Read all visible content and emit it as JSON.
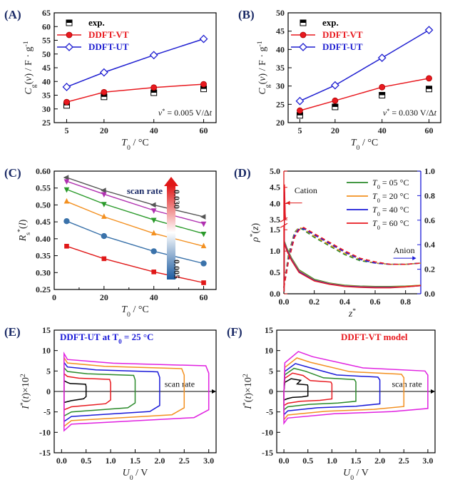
{
  "chart_data": [
    {
      "panel": "(A)",
      "type": "line",
      "xlabel": "T0 / °C",
      "ylabel": "Cg(v) / F·g-1",
      "xlim": [
        0,
        65
      ],
      "ylim": [
        25,
        65
      ],
      "xticks": [
        5,
        20,
        40,
        60
      ],
      "yticks": [
        25,
        30,
        35,
        40,
        45,
        50,
        55,
        60,
        65
      ],
      "x": [
        5,
        20,
        40,
        60
      ],
      "series": [
        {
          "name": "exp.",
          "marker": "square-half",
          "color": "#000000",
          "values": [
            31.3,
            34.4,
            35.9,
            37.3
          ]
        },
        {
          "name": "DDFT-VT",
          "marker": "circle",
          "color": "#e8191f",
          "values": [
            32.5,
            36.1,
            37.8,
            39.0
          ]
        },
        {
          "name": "DDFT-UT",
          "marker": "diamond-open",
          "color": "#1f1fd1",
          "values": [
            38.0,
            43.3,
            49.6,
            55.5
          ]
        }
      ],
      "annotation": "v* = 0.005 V/Δt"
    },
    {
      "panel": "(B)",
      "type": "line",
      "xlabel": "T0 / °C",
      "ylabel": "Cg(v) / F·g-1",
      "xlim": [
        0,
        65
      ],
      "ylim": [
        20,
        50
      ],
      "xticks": [
        5,
        20,
        40,
        60
      ],
      "yticks": [
        20,
        25,
        30,
        35,
        40,
        45,
        50
      ],
      "x": [
        5,
        20,
        40,
        60
      ],
      "series": [
        {
          "name": "exp.",
          "marker": "square-half",
          "color": "#000000",
          "values": [
            22.0,
            24.3,
            27.5,
            29.2
          ]
        },
        {
          "name": "DDFT-VT",
          "marker": "circle",
          "color": "#e8191f",
          "values": [
            23.3,
            26.0,
            29.7,
            32.1
          ]
        },
        {
          "name": "DDFT-UT",
          "marker": "diamond-open",
          "color": "#1f1fd1",
          "values": [
            25.9,
            30.2,
            37.7,
            45.3
          ]
        }
      ],
      "annotation": "v* = 0.030 V/Δt"
    },
    {
      "panel": "(C)",
      "type": "line",
      "xlabel": "T0 / °C",
      "ylabel": "Rs*(l)",
      "xlim": [
        0,
        65
      ],
      "ylim": [
        0.25,
        0.6
      ],
      "xticks": [
        0,
        10,
        20,
        30,
        40,
        50,
        60
      ],
      "yticks": [
        0.25,
        0.3,
        0.35,
        0.4,
        0.45,
        0.5,
        0.55,
        0.6
      ],
      "x": [
        5,
        20,
        40,
        60
      ],
      "series": [
        {
          "color": "#555555",
          "values": [
            0.581,
            0.543,
            0.5,
            0.465
          ],
          "marker": "triangle-left"
        },
        {
          "color": "#b030b0",
          "values": [
            0.57,
            0.532,
            0.484,
            0.445
          ],
          "marker": "triangle-down"
        },
        {
          "color": "#2a9a2a",
          "values": [
            0.546,
            0.503,
            0.456,
            0.415
          ],
          "marker": "triangle-down"
        },
        {
          "color": "#f39020",
          "values": [
            0.51,
            0.465,
            0.416,
            0.378
          ],
          "marker": "triangle-up"
        },
        {
          "color": "#3a72aa",
          "values": [
            0.452,
            0.408,
            0.363,
            0.327
          ],
          "marker": "circle"
        },
        {
          "color": "#e01818",
          "values": [
            0.378,
            0.341,
            0.302,
            0.27
          ],
          "marker": "square"
        }
      ],
      "legend_title": "scan rate",
      "colorbar_max": "0.030",
      "colorbar_min": "0.005"
    },
    {
      "panel": "(D)",
      "type": "line",
      "xlabel": "z*",
      "ylabel": "ρ*(z)",
      "xlim": [
        0,
        0.9
      ],
      "ylim_left": [
        0,
        5.0
      ],
      "ylim_right": [
        0,
        1.0
      ],
      "xticks": [
        0.0,
        0.2,
        0.4,
        0.6,
        0.8
      ],
      "yticks_left": [
        "0.0",
        "0.5",
        "1.0",
        "1.5",
        "3.5",
        "4.0",
        "4.5",
        "5.0"
      ],
      "yticks_right": [
        "0.0",
        "0.2",
        "0.4",
        "0.6",
        "0.8",
        "1.0"
      ],
      "series": [
        {
          "name": "T0 = 05 °C",
          "color": "#2a8a2a"
        },
        {
          "name": "T0 = 20 °C",
          "color": "#f39020"
        },
        {
          "name": "T0 = 40 °C",
          "color": "#1a1ad8"
        },
        {
          "name": "T0 = 60 °C",
          "color": "#e8191f"
        }
      ],
      "cation_label": "Cation",
      "anion_label": "Anion",
      "cation_curve_x": [
        0.005,
        0.02,
        0.05,
        0.1,
        0.2,
        0.3,
        0.4,
        0.5,
        0.6,
        0.7,
        0.8,
        0.9
      ],
      "cation_curve_y": [
        [
          1.22,
          1.07,
          0.84,
          0.56,
          0.34,
          0.25,
          0.2,
          0.18,
          0.17,
          0.17,
          0.18,
          0.2
        ],
        [
          1.2,
          1.05,
          0.82,
          0.54,
          0.32,
          0.24,
          0.19,
          0.17,
          0.16,
          0.16,
          0.17,
          0.2
        ],
        [
          1.18,
          1.03,
          0.8,
          0.52,
          0.31,
          0.23,
          0.18,
          0.16,
          0.15,
          0.15,
          0.16,
          0.19
        ],
        [
          1.16,
          1.0,
          0.78,
          0.5,
          0.3,
          0.22,
          0.17,
          0.15,
          0.14,
          0.14,
          0.16,
          0.19
        ]
      ],
      "anion_curve_x": [
        0.0,
        0.03,
        0.07,
        0.1,
        0.13,
        0.2,
        0.3,
        0.4,
        0.5,
        0.6,
        0.7,
        0.8,
        0.9
      ],
      "anion_curve_y": [
        [
          0.05,
          0.32,
          0.5,
          0.54,
          0.52,
          0.46,
          0.39,
          0.32,
          0.27,
          0.25,
          0.24,
          0.24,
          0.25
        ],
        [
          0.05,
          0.3,
          0.49,
          0.54,
          0.53,
          0.47,
          0.4,
          0.33,
          0.28,
          0.25,
          0.24,
          0.24,
          0.25
        ],
        [
          0.05,
          0.28,
          0.48,
          0.53,
          0.53,
          0.48,
          0.41,
          0.34,
          0.28,
          0.25,
          0.24,
          0.24,
          0.25
        ],
        [
          0.05,
          0.26,
          0.46,
          0.52,
          0.54,
          0.49,
          0.42,
          0.35,
          0.29,
          0.26,
          0.24,
          0.24,
          0.25
        ]
      ]
    },
    {
      "panel": "(E)",
      "type": "line",
      "title": "DDFT-UT at T0 = 25 °C",
      "xlabel": "U0 / V",
      "ylabel": "I*(t)×10^2",
      "xlim": [
        -0.15,
        3.15
      ],
      "ylim": [
        -15,
        15
      ],
      "xticks": [
        "0.0",
        "0.5",
        "1.0",
        "1.5",
        "2.0",
        "2.5",
        "3.0"
      ],
      "yticks": [
        -15,
        -10,
        -5,
        0,
        5,
        10,
        15
      ],
      "annotation": "scan rate",
      "loops": [
        {
          "umax": 0.5,
          "top": 1.8,
          "bottom": -1.8,
          "color": "#000000"
        },
        {
          "umax": 1.0,
          "top": 3.0,
          "bottom": -3.0,
          "color": "#e8191f"
        },
        {
          "umax": 1.5,
          "top": 4.0,
          "bottom": -4.0,
          "color": "#2a8a2a"
        },
        {
          "umax": 2.0,
          "top": 4.9,
          "bottom": -4.9,
          "color": "#1a1ad8"
        },
        {
          "umax": 2.5,
          "top": 5.7,
          "bottom": -5.7,
          "color": "#f39020"
        },
        {
          "umax": 3.0,
          "top": 6.4,
          "bottom": -6.4,
          "color": "#e020e0"
        }
      ]
    },
    {
      "panel": "(F)",
      "type": "line",
      "title": "DDFT-VT model",
      "xlabel": "U0 / V",
      "ylabel": "I*(t)×10^2",
      "xlim": [
        -0.15,
        3.15
      ],
      "ylim": [
        -15,
        15
      ],
      "xticks": [
        "0.0",
        "0.5",
        "1.0",
        "1.5",
        "2.0",
        "2.5",
        "3.0"
      ],
      "yticks": [
        -15,
        -10,
        -5,
        0,
        5,
        10,
        15
      ],
      "annotation": "scan rate",
      "loops": [
        {
          "umax": 0.5,
          "top": 1.6,
          "bottom": -1.4,
          "color": "#000000"
        },
        {
          "umax": 1.0,
          "top": 2.3,
          "bottom": -2.3,
          "color": "#e8191f"
        },
        {
          "umax": 1.5,
          "top": 2.9,
          "bottom": -3.0,
          "color": "#2a8a2a"
        },
        {
          "umax": 2.0,
          "top": 3.5,
          "bottom": -3.8,
          "color": "#1a1ad8"
        },
        {
          "umax": 2.5,
          "top": 4.2,
          "bottom": -4.6,
          "color": "#f39020"
        },
        {
          "umax": 3.0,
          "top": 5.0,
          "bottom": -5.2,
          "color": "#e020e0"
        }
      ]
    }
  ]
}
